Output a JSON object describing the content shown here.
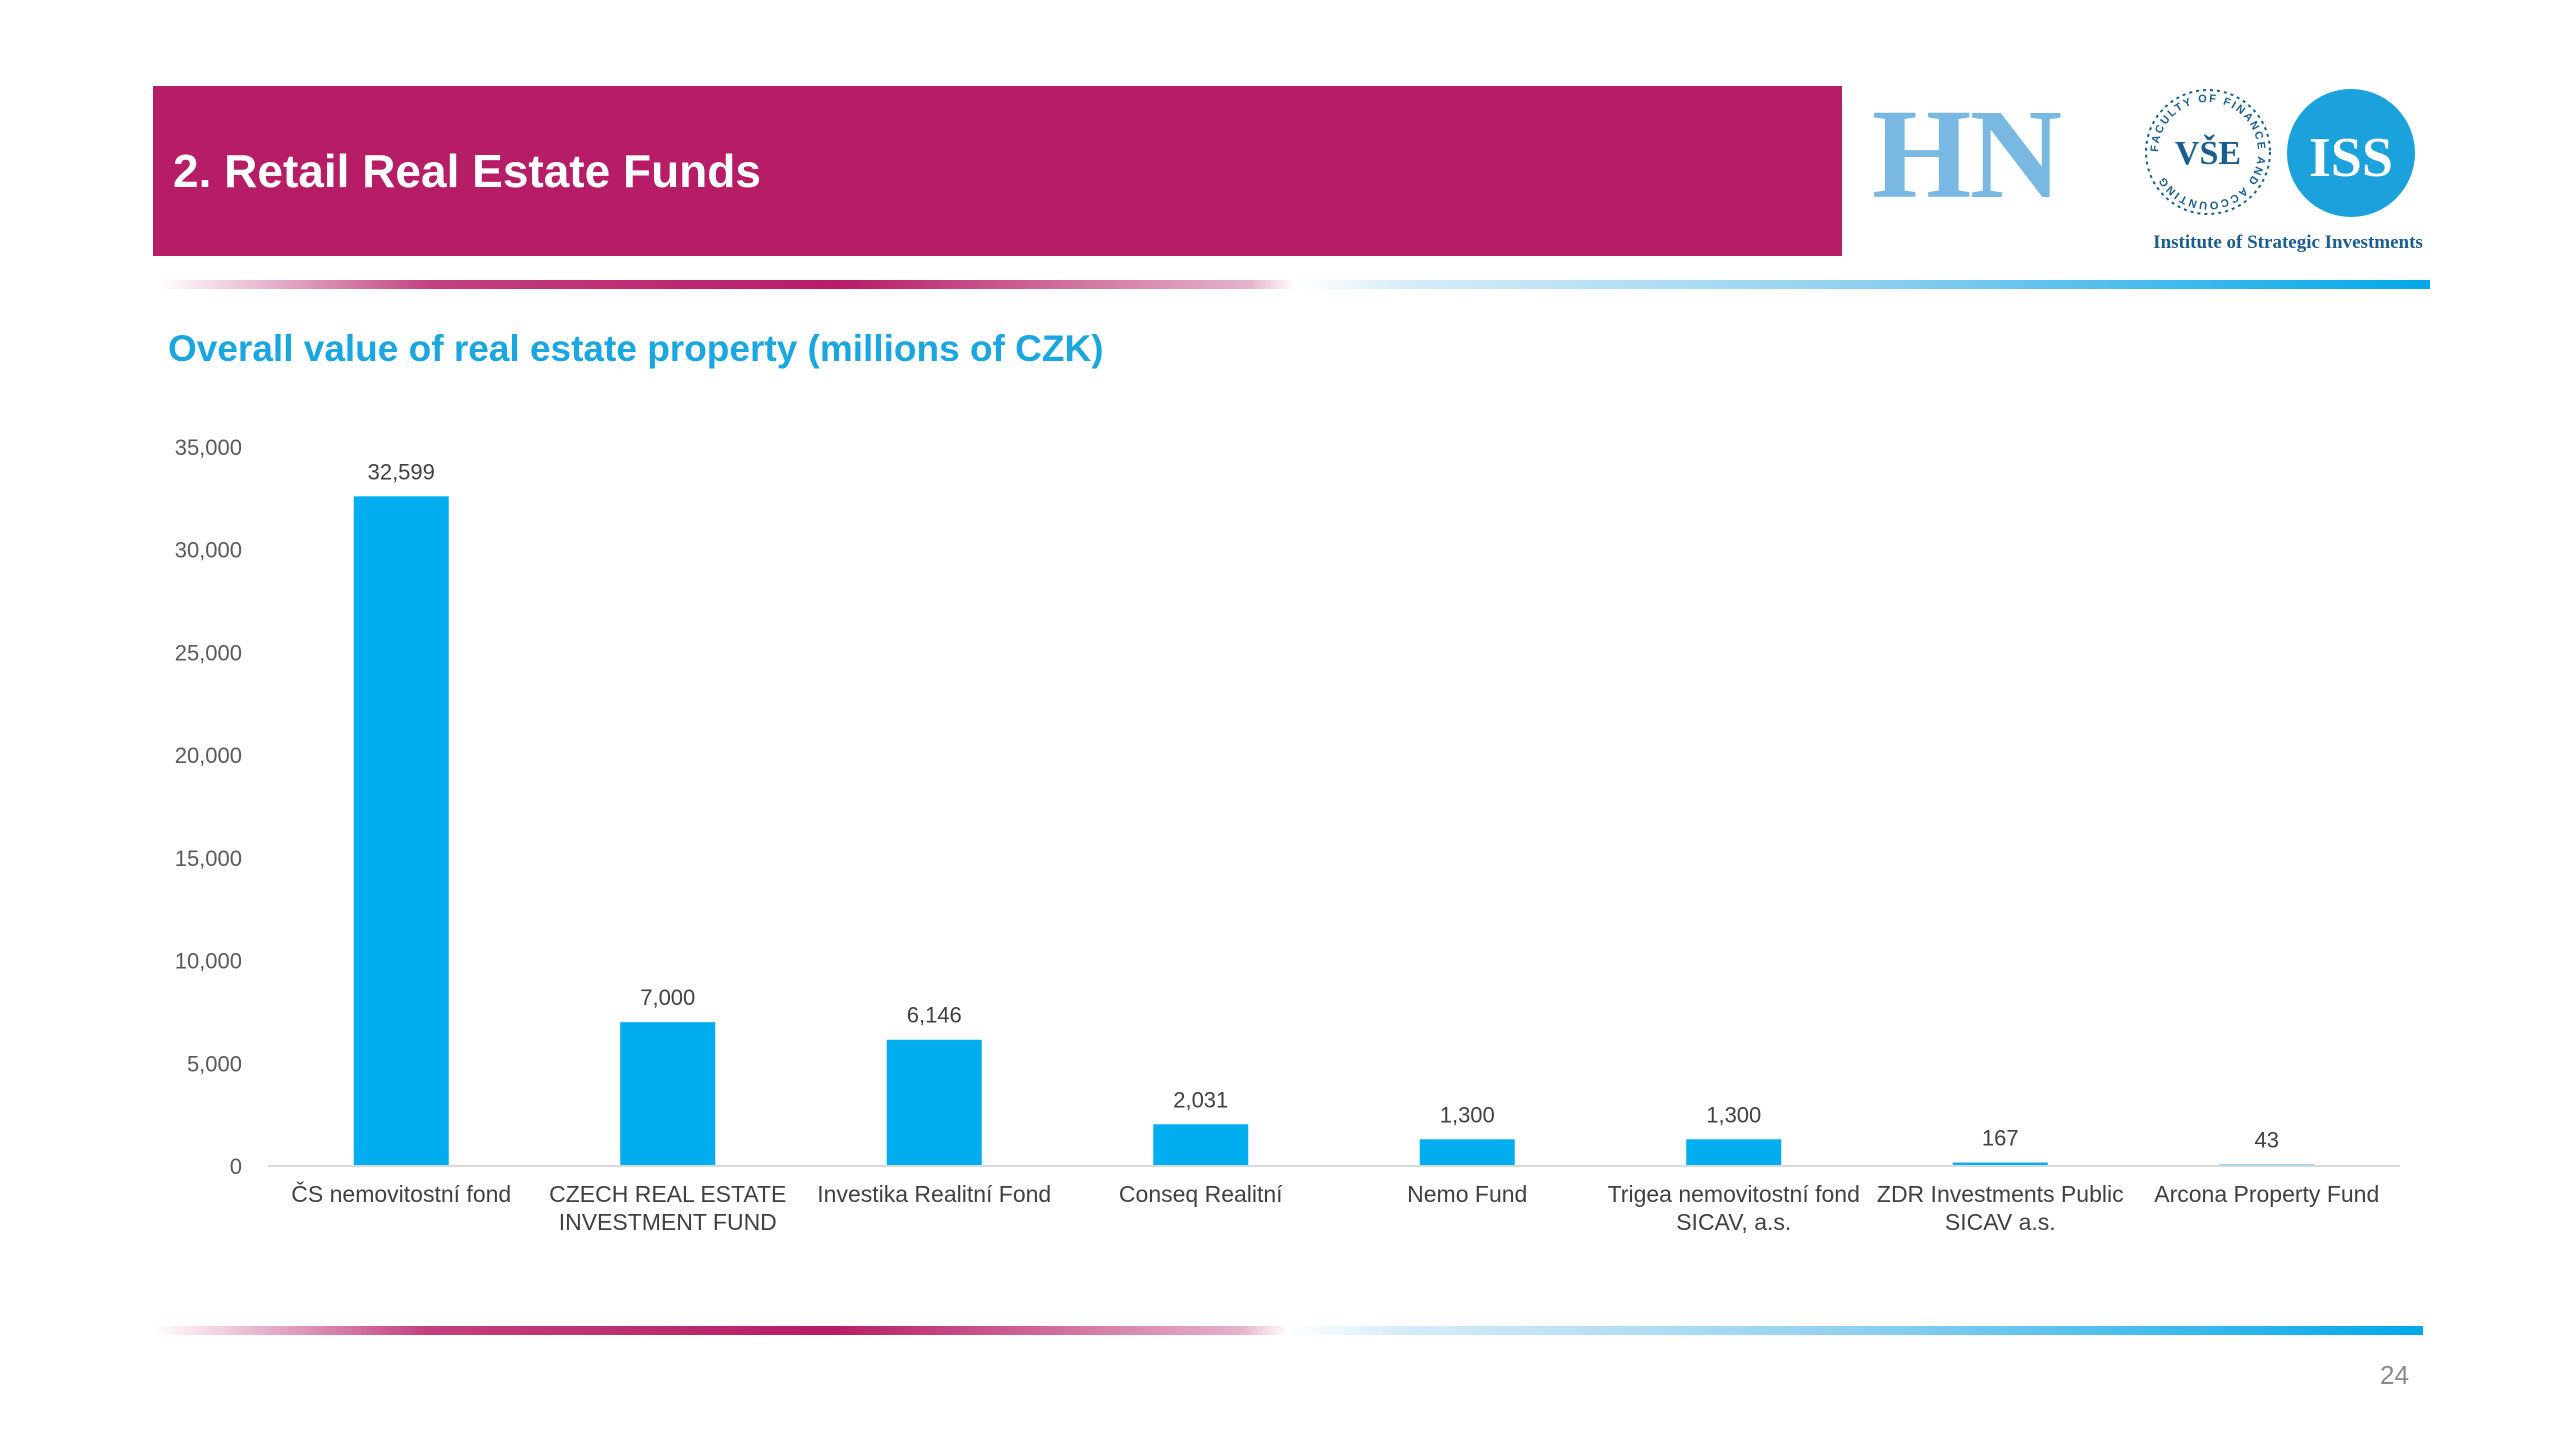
{
  "slide": {
    "title": "2. Retail Real Estate Funds",
    "page_number": "24"
  },
  "logos": {
    "hn": "HN",
    "seal_text": "FACULTY OF FINANCE AND ACCOUNTING",
    "seal_mark": "VŠE",
    "iss_mark": "ISS",
    "iss_caption": "Institute of Strategic Investments"
  },
  "colors": {
    "header_bg": "#b71c66",
    "bar": "#00aeef",
    "chart_title": "#1aa6e0",
    "logo_blue": "#79b8e2",
    "iss_blue": "#1ba1dc"
  },
  "chart_data": {
    "type": "bar",
    "title": "Overall value of real estate property (millions of CZK)",
    "categories": [
      "ČS nemovitostní fond",
      "CZECH REAL ESTATE INVESTMENT FUND",
      "Investika Realitní Fond",
      "Conseq Realitní",
      "Nemo Fund",
      "Trigea nemovitostní fond SICAV, a.s.",
      "ZDR Investments Public SICAV a.s.",
      "Arcona Property Fund"
    ],
    "category_label_lines": [
      [
        "ČS nemovitostní fond"
      ],
      [
        "CZECH REAL ESTATE",
        "INVESTMENT FUND"
      ],
      [
        "Investika Realitní Fond"
      ],
      [
        "Conseq Realitní"
      ],
      [
        "Nemo Fund"
      ],
      [
        "Trigea nemovitostní fond",
        "SICAV, a.s."
      ],
      [
        "ZDR Investments Public",
        "SICAV a.s."
      ],
      [
        "Arcona Property Fund"
      ]
    ],
    "values": [
      32599,
      7000,
      6146,
      2031,
      1300,
      1300,
      167,
      43
    ],
    "data_labels": [
      "32,599",
      "7,000",
      "6,146",
      "2,031",
      "1,300",
      "1,300",
      "167",
      "43"
    ],
    "yticks": [
      "0",
      "5,000",
      "10,000",
      "15,000",
      "20,000",
      "25,000",
      "30,000",
      "35,000"
    ],
    "ylim": [
      0,
      35000
    ],
    "grid": false,
    "legend": "none"
  }
}
